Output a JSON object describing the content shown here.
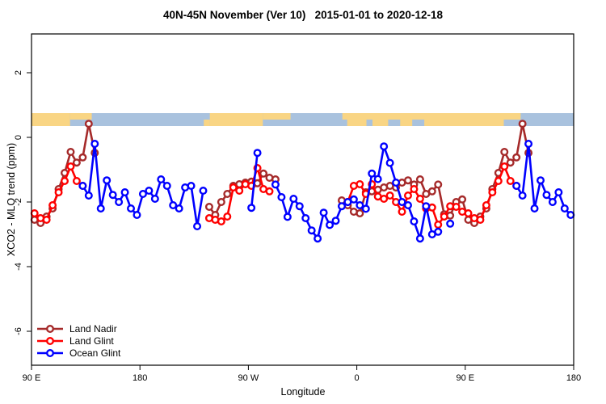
{
  "header": {
    "title": "40N-45N November (Ver 10)   2015-01-01 to 2020-12-18"
  },
  "chart_data": {
    "type": "line",
    "title": "40N-45N November (Ver 10)   2015-01-01 to 2020-12-18",
    "xlabel": "Longitude",
    "ylabel": "XCO2 - MLO trend (ppm)",
    "grid": false,
    "legend_position": "bottom-left",
    "x_axis": {
      "description": "Longitude axis starting at 90E, wrapping eastward around the globe for 450 degrees, ending at 180",
      "span_deg": 450,
      "ticks": [
        {
          "label": "90 E",
          "p": 0
        },
        {
          "label": "180",
          "p": 90
        },
        {
          "label": "90 W",
          "p": 180
        },
        {
          "label": "0",
          "p": 270
        },
        {
          "label": "90 E",
          "p": 360
        },
        {
          "label": "180",
          "p": 450
        }
      ]
    },
    "ylim": [
      -7.05,
      3.2
    ],
    "y_ticks": [
      2,
      0,
      -2,
      -4,
      -6
    ],
    "x_bin_offset_deg": 2.5,
    "x_step_deg": 5,
    "series": [
      {
        "name": "Land Nadir",
        "color": "#A52A2A",
        "values": [
          -2.55,
          -2.65,
          -2.45,
          -2.2,
          -1.6,
          -1.1,
          -0.45,
          -0.78,
          -0.62,
          0.42,
          -0.48,
          null,
          null,
          null,
          null,
          null,
          null,
          null,
          null,
          null,
          null,
          null,
          null,
          null,
          null,
          null,
          null,
          null,
          null,
          -2.15,
          -2.4,
          -2.0,
          -1.75,
          -1.5,
          -1.45,
          -1.4,
          -1.37,
          -1.42,
          -1.12,
          -1.25,
          -1.3,
          null,
          null,
          null,
          null,
          null,
          null,
          null,
          null,
          null,
          null,
          -1.95,
          -2.1,
          -2.3,
          -2.35,
          -1.7,
          -1.67,
          -1.62,
          -1.55,
          -1.5,
          -1.55,
          -1.4,
          -1.33,
          -1.46,
          -1.3,
          -1.75,
          -1.67,
          -1.46,
          -2.38,
          -2.42,
          -2.0,
          -1.92,
          -2.55,
          -2.65,
          -2.45,
          -2.2,
          -1.6,
          -1.1,
          -0.45,
          -0.78,
          -0.62,
          0.42,
          -0.48,
          null,
          null,
          null,
          null,
          null,
          null,
          null
        ]
      },
      {
        "name": "Land Glint",
        "color": "#FF0000",
        "values": [
          -2.35,
          -2.5,
          -2.55,
          -2.1,
          -1.7,
          -1.35,
          -0.9,
          -1.35,
          -1.5,
          null,
          null,
          null,
          null,
          null,
          null,
          null,
          null,
          null,
          null,
          null,
          null,
          null,
          null,
          null,
          null,
          null,
          null,
          null,
          null,
          -2.5,
          -2.55,
          -2.6,
          -2.45,
          -1.55,
          -1.65,
          -1.45,
          -1.5,
          -0.95,
          -1.6,
          -1.67,
          null,
          null,
          null,
          null,
          null,
          null,
          null,
          null,
          null,
          null,
          null,
          null,
          -2.0,
          -1.5,
          -1.45,
          -1.75,
          -1.45,
          -1.83,
          -1.9,
          -1.8,
          -2.0,
          -2.3,
          -1.8,
          -1.6,
          -1.9,
          -2.2,
          -2.17,
          -2.7,
          -2.45,
          -2.13,
          -2.15,
          -2.3,
          -2.35,
          -2.5,
          -2.55,
          -2.1,
          -1.7,
          -1.35,
          -0.9,
          -1.35,
          -1.5,
          null,
          null,
          null,
          null,
          null,
          null,
          null,
          null,
          null
        ]
      },
      {
        "name": "Ocean Glint",
        "color": "#0000FF",
        "values": [
          null,
          null,
          null,
          null,
          null,
          null,
          null,
          null,
          -1.5,
          -1.8,
          -0.2,
          -2.2,
          -1.33,
          -1.78,
          -2.0,
          -1.7,
          -2.2,
          -2.4,
          -1.75,
          -1.65,
          -1.9,
          -1.3,
          -1.5,
          -2.1,
          -2.2,
          -1.55,
          -1.5,
          -2.75,
          -1.65,
          null,
          null,
          null,
          null,
          null,
          null,
          null,
          -2.18,
          -0.48,
          null,
          null,
          -1.46,
          -1.85,
          -2.46,
          -1.9,
          -2.13,
          -2.5,
          -2.88,
          -3.13,
          -2.33,
          -2.71,
          -2.58,
          -2.13,
          -2.0,
          -1.92,
          -2.1,
          -2.21,
          -1.12,
          -1.29,
          -0.28,
          -0.79,
          -1.4,
          -2.0,
          -2.1,
          -2.6,
          -3.13,
          -2.13,
          -3.0,
          -2.92,
          null,
          -2.67,
          null,
          null,
          null,
          null,
          null,
          null,
          null,
          null,
          null,
          null,
          -1.5,
          -1.8,
          -0.2,
          -2.2,
          -1.33,
          -1.78,
          -2.0,
          -1.7,
          -2.2,
          -2.4
        ]
      }
    ],
    "map_strip": {
      "description": "World map band at 40N-45N drawn across the plot near +0.5 ppm",
      "ocean_color": "#A9C2DE",
      "land_color": "#F9D584",
      "value_top": 0.75,
      "value_bottom": 0.35,
      "land_segments": [
        {
          "from": 0,
          "to": 32,
          "row": "full"
        },
        {
          "from": 32,
          "to": 50,
          "row": "top"
        },
        {
          "from": 143,
          "to": 148,
          "row": "bottom"
        },
        {
          "from": 148,
          "to": 192,
          "row": "full"
        },
        {
          "from": 192,
          "to": 215,
          "row": "top"
        },
        {
          "from": 258,
          "to": 406,
          "row": "top"
        },
        {
          "from": 262,
          "to": 278,
          "row": "bottom"
        },
        {
          "from": 283,
          "to": 296,
          "row": "bottom"
        },
        {
          "from": 306,
          "to": 316,
          "row": "bottom"
        },
        {
          "from": 326,
          "to": 392,
          "row": "bottom"
        }
      ]
    },
    "legend": {
      "items": [
        {
          "label": "Land Nadir",
          "color": "#A52A2A"
        },
        {
          "label": "Land Glint",
          "color": "#FF0000"
        },
        {
          "label": "Ocean Glint",
          "color": "#0000FF"
        }
      ]
    }
  }
}
